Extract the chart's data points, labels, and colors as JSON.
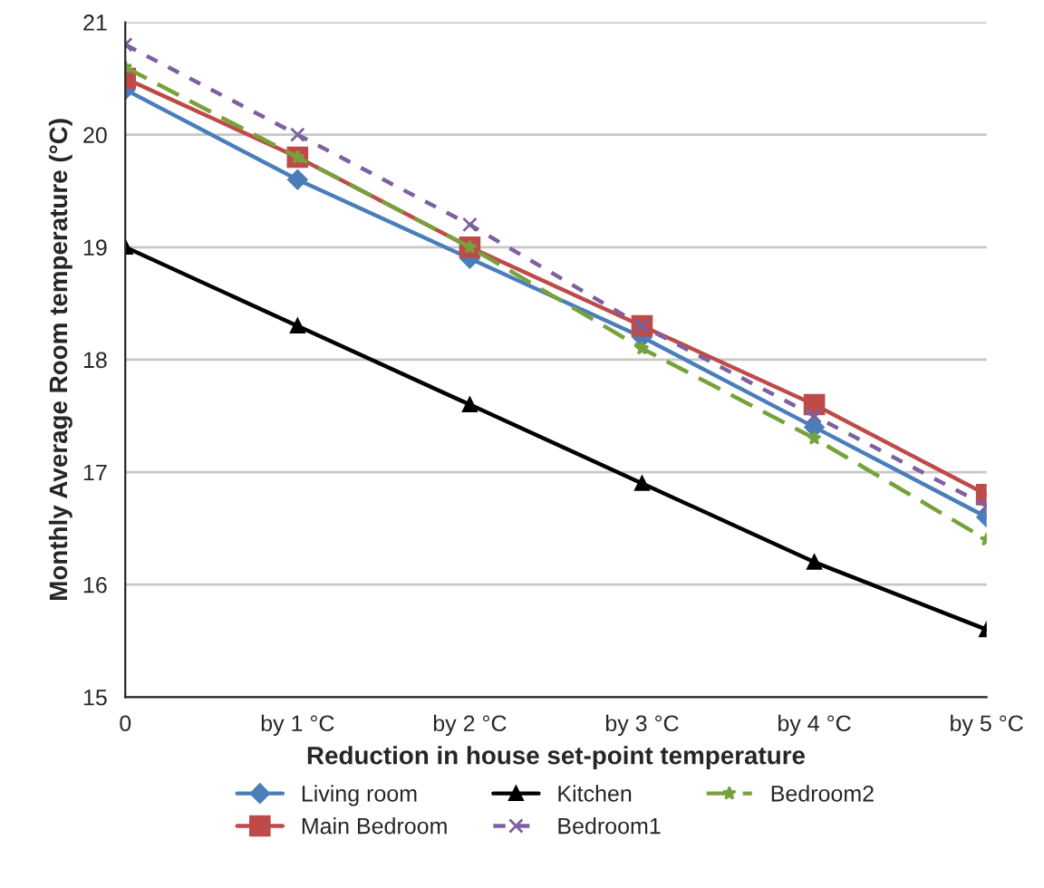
{
  "chart_data": {
    "type": "line",
    "xlabel": "Reduction in house set-point temperature",
    "ylabel": "Monthly Average Room temperature (°C)",
    "categories": [
      "0",
      "by 1 °C",
      "by 2 °C",
      "by 3 °C",
      "by 4 °C",
      "by 5 °C"
    ],
    "ylim": [
      15,
      21
    ],
    "yticks": [
      15,
      16,
      17,
      18,
      19,
      20,
      21
    ],
    "grid": "y",
    "legend": "bottom",
    "series": [
      {
        "name": "Living room",
        "color": "#4a7ebb",
        "marker": "diamond",
        "line_style": "solid",
        "values": [
          20.4,
          19.6,
          18.9,
          18.2,
          17.4,
          16.6
        ]
      },
      {
        "name": "Main Bedroom",
        "color": "#be4b48",
        "marker": "square",
        "line_style": "solid",
        "values": [
          20.5,
          19.8,
          19.0,
          18.3,
          17.6,
          16.8
        ]
      },
      {
        "name": "Kitchen",
        "color": "#000000",
        "marker": "triangle",
        "line_style": "solid",
        "values": [
          19.0,
          18.3,
          17.6,
          16.9,
          16.2,
          15.6
        ]
      },
      {
        "name": "Bedroom1",
        "color": "#7d60a0",
        "marker": "cross",
        "line_style": "dotted",
        "values": [
          20.8,
          20.0,
          19.2,
          18.3,
          17.5,
          16.7
        ]
      },
      {
        "name": "Bedroom2",
        "color": "#77a23b",
        "marker": "star",
        "line_style": "dashed",
        "values": [
          20.6,
          19.8,
          19.0,
          18.1,
          17.3,
          16.4
        ]
      }
    ]
  }
}
